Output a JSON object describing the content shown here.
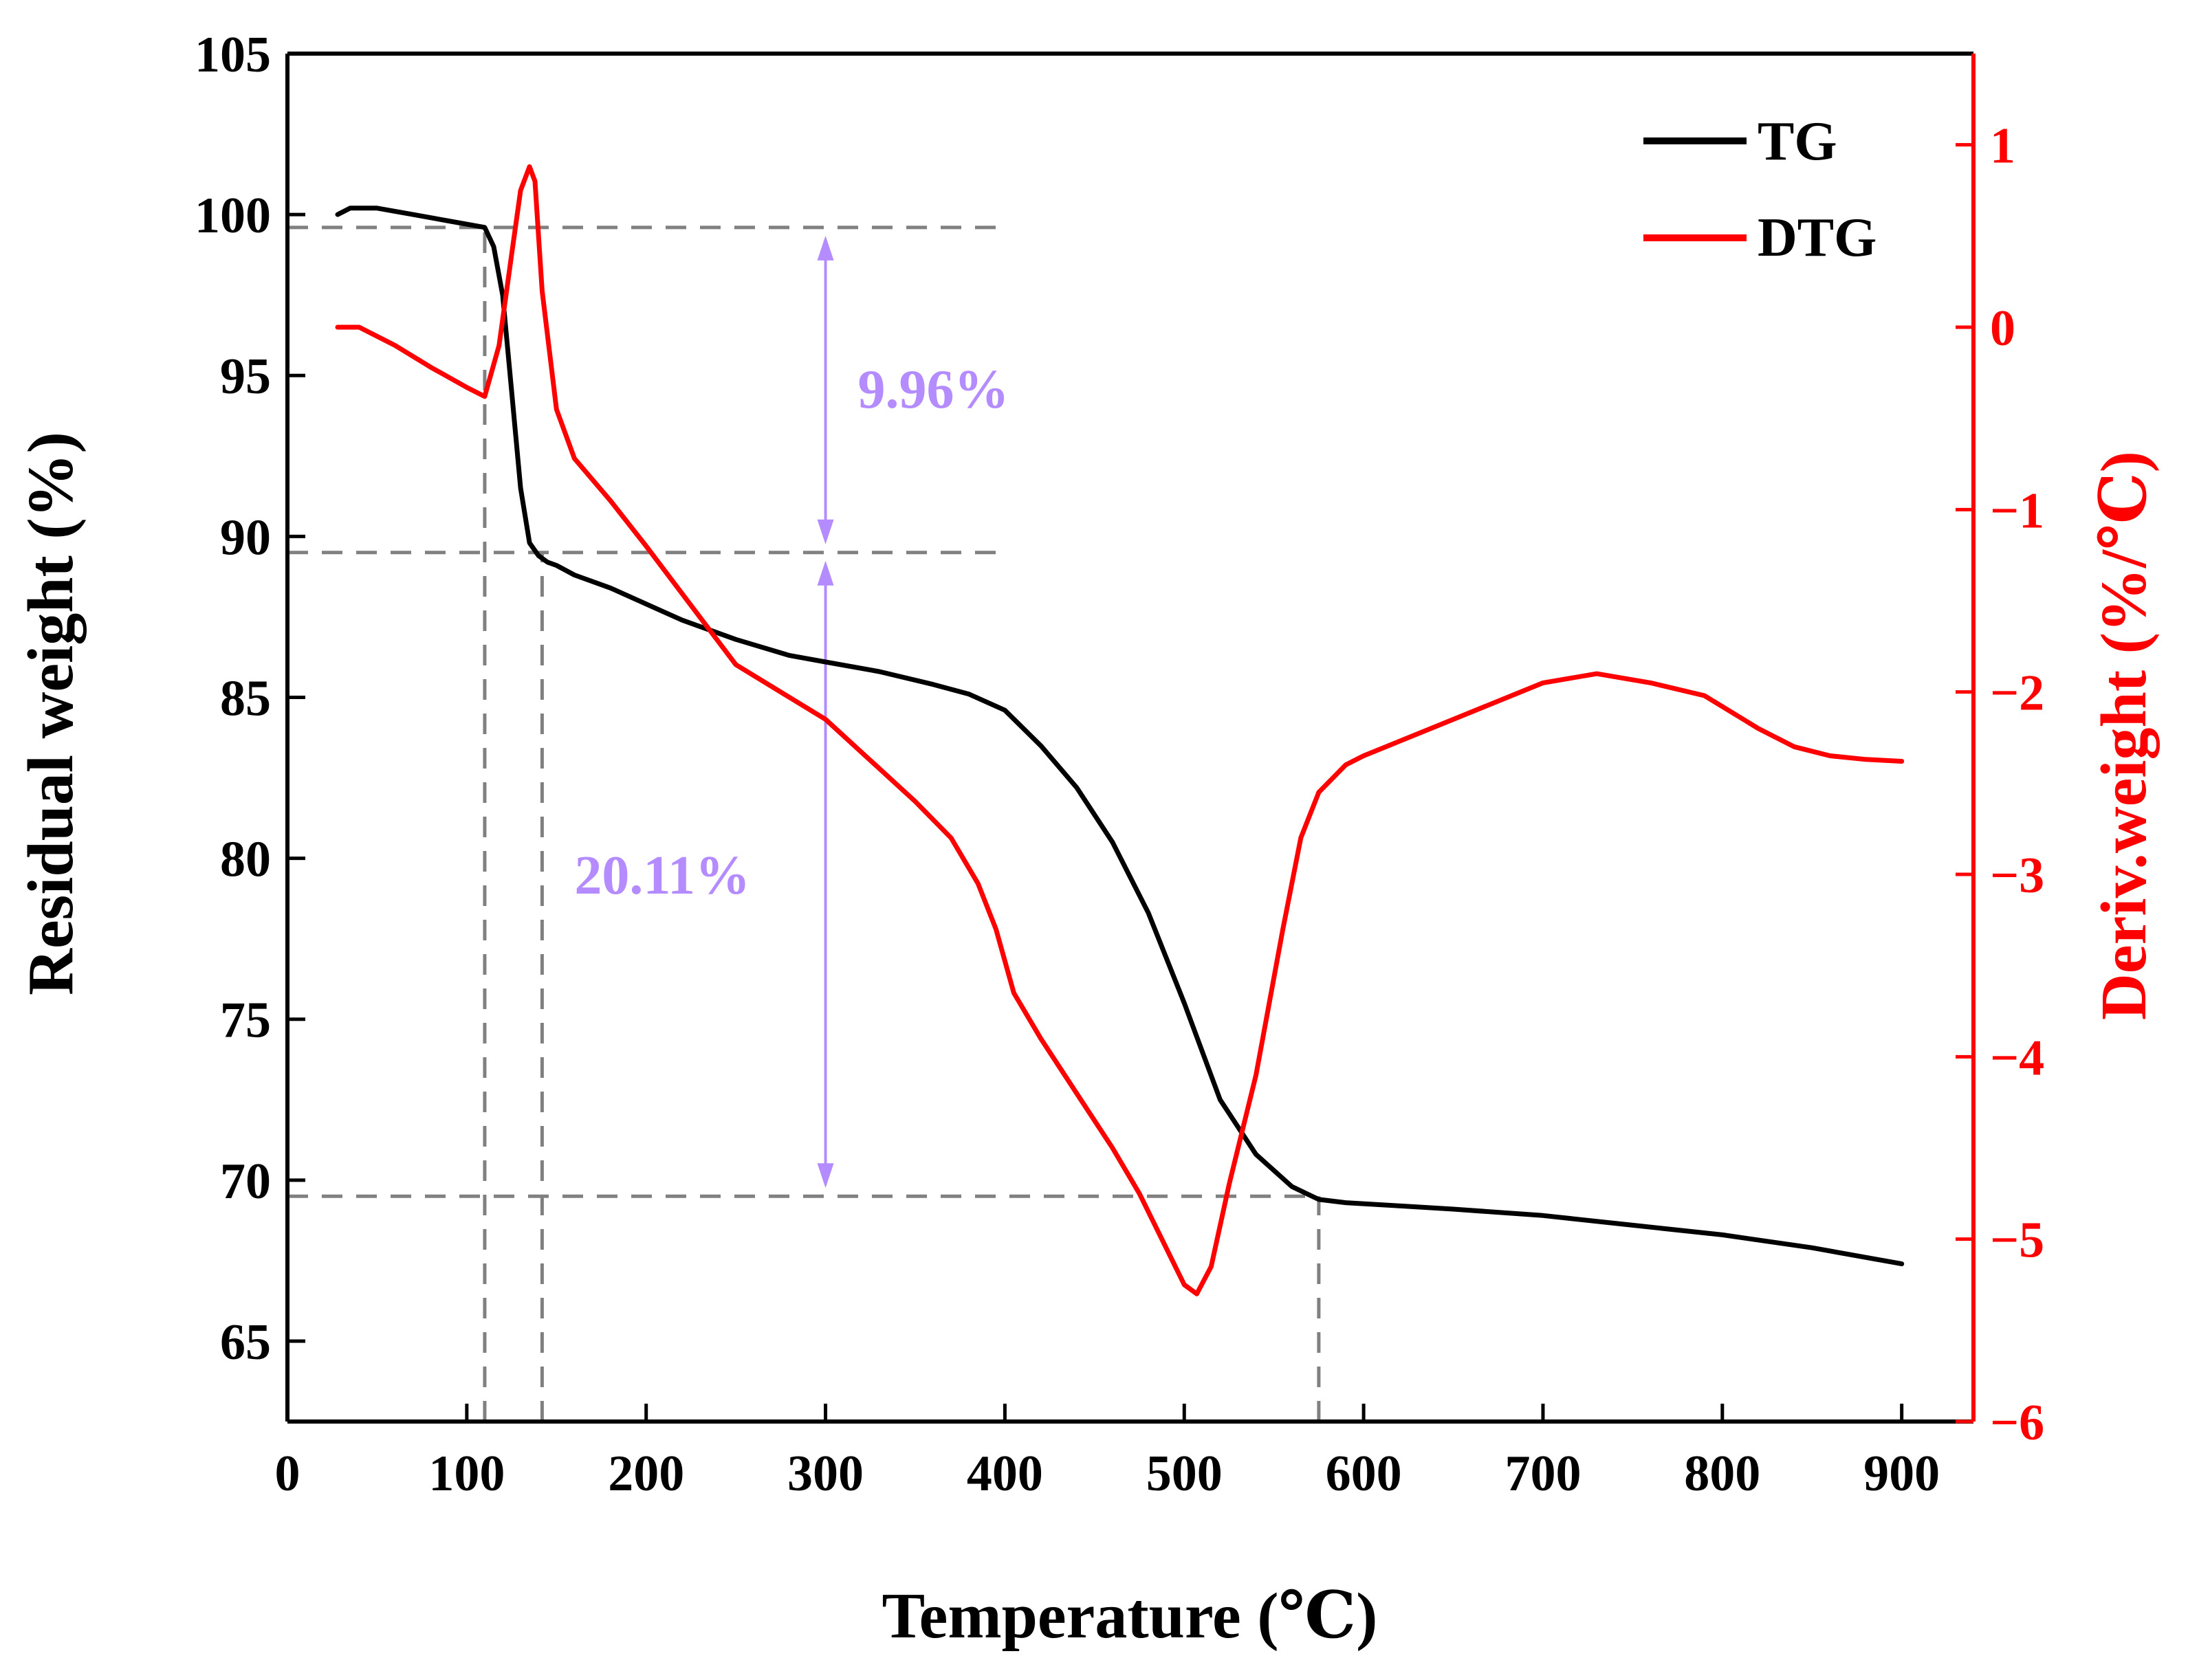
{
  "chart_data": {
    "type": "line",
    "title": "",
    "xlabel": "Temperature (℃)",
    "ylabel": "Residual weight (%)",
    "y2label": "Deriv.weight (%/℃)",
    "xlim": [
      0,
      940
    ],
    "ylim": [
      62.5,
      105
    ],
    "y2lim": [
      -6,
      1.5
    ],
    "xticks": [
      0,
      100,
      200,
      300,
      400,
      500,
      600,
      700,
      800,
      900
    ],
    "yticks": [
      65,
      70,
      75,
      80,
      85,
      90,
      95,
      100,
      105
    ],
    "y2ticks": [
      -6,
      -5,
      -4,
      -3,
      -2,
      -1,
      0,
      1
    ],
    "y2tick_labels": [
      "−6",
      "−5",
      "−4",
      "−3",
      "−2",
      "−1",
      "0",
      "1"
    ],
    "grid": false,
    "legend": {
      "position": "top-right",
      "entries": [
        "TG",
        "DTG"
      ]
    },
    "colors": {
      "tg": "#000000",
      "dtg": "#ff0000",
      "annotation": "#b48cff",
      "guide": "#808080",
      "right_axis": "#ff0000"
    },
    "series": [
      {
        "name": "TG",
        "axis": "left",
        "x": [
          28,
          35,
          50,
          70,
          90,
          110,
          115,
          120,
          125,
          130,
          135,
          140,
          145,
          150,
          160,
          180,
          200,
          220,
          250,
          280,
          300,
          330,
          360,
          380,
          400,
          420,
          440,
          460,
          480,
          500,
          520,
          540,
          560,
          575,
          590,
          620,
          650,
          700,
          750,
          800,
          850,
          900
        ],
        "y": [
          100.0,
          100.2,
          100.2,
          100.0,
          99.8,
          99.6,
          99.0,
          97.5,
          94.5,
          91.5,
          89.8,
          89.4,
          89.2,
          89.1,
          88.8,
          88.4,
          87.9,
          87.4,
          86.8,
          86.3,
          86.1,
          85.8,
          85.4,
          85.1,
          84.6,
          83.5,
          82.2,
          80.5,
          78.3,
          75.5,
          72.5,
          70.8,
          69.8,
          69.4,
          69.3,
          69.2,
          69.1,
          68.9,
          68.6,
          68.3,
          67.9,
          67.4
        ]
      },
      {
        "name": "DTG",
        "axis": "right",
        "x": [
          28,
          40,
          60,
          80,
          100,
          110,
          118,
          125,
          130,
          135,
          138,
          142,
          150,
          160,
          180,
          200,
          250,
          300,
          350,
          370,
          385,
          395,
          405,
          420,
          440,
          460,
          475,
          490,
          500,
          507,
          515,
          525,
          540,
          555,
          565,
          575,
          590,
          600,
          650,
          700,
          730,
          760,
          790,
          800,
          820,
          840,
          860,
          880,
          900
        ],
        "y": [
          0.0,
          0.0,
          -0.1,
          -0.22,
          -0.33,
          -0.38,
          -0.1,
          0.4,
          0.75,
          0.88,
          0.8,
          0.2,
          -0.45,
          -0.72,
          -0.95,
          -1.2,
          -1.85,
          -2.15,
          -2.6,
          -2.8,
          -3.05,
          -3.3,
          -3.65,
          -3.9,
          -4.2,
          -4.5,
          -4.75,
          -5.05,
          -5.25,
          -5.3,
          -5.15,
          -4.7,
          -4.1,
          -3.3,
          -2.8,
          -2.55,
          -2.4,
          -2.35,
          -2.15,
          -1.95,
          -1.9,
          -1.95,
          -2.02,
          -2.08,
          -2.2,
          -2.3,
          -2.35,
          -2.37,
          -2.38
        ]
      }
    ],
    "guide_lines": [
      {
        "type": "h",
        "axis": "left",
        "y": 99.6,
        "x_from": 0,
        "x_to": 400
      },
      {
        "type": "h",
        "axis": "left",
        "y": 89.5,
        "x_from": 0,
        "x_to": 400
      },
      {
        "type": "h",
        "axis": "left",
        "y": 69.5,
        "x_from": 0,
        "x_to": 575
      },
      {
        "type": "v",
        "x": 110,
        "y_from": 62.5,
        "y_to": 99.6
      },
      {
        "type": "v",
        "x": 142,
        "y_from": 62.5,
        "y_to": 89.5
      },
      {
        "type": "v",
        "x": 575,
        "y_from": 62.5,
        "y_to": 69.5
      }
    ],
    "annotations": [
      {
        "label": "9.96%",
        "x": 300,
        "y_from": 99.6,
        "y_to": 89.5,
        "text_x": 318,
        "text_y": 94.6
      },
      {
        "label": "20.11%",
        "x": 300,
        "y_from": 89.5,
        "y_to": 69.5,
        "text_x": 160,
        "text_y": 79.5
      }
    ]
  }
}
